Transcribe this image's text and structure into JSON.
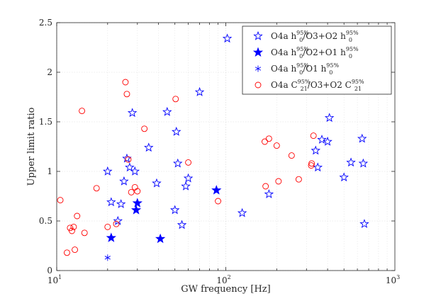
{
  "chart_data": {
    "type": "scatter",
    "xlabel": "GW frequency [Hz]",
    "ylabel": "Upper limit ratio",
    "xscale": "log",
    "xlim": [
      10,
      1000
    ],
    "ylim": [
      0,
      2.5
    ],
    "xticks": [
      10,
      100,
      1000
    ],
    "xtick_labels": [
      "10",
      "10",
      "10"
    ],
    "xtick_exponents": [
      "1",
      "2",
      "3"
    ],
    "yticks": [
      0,
      0.5,
      1,
      1.5,
      2,
      2.5
    ],
    "ytick_labels": [
      "0",
      "0.5",
      "1",
      "1.5",
      "2",
      "2.5"
    ],
    "grid": true,
    "legend_position": "top-right",
    "series": [
      {
        "name": "O4a h0 95% / O3+O2 h0 95%",
        "legend_label": {
          "base": "O4a h",
          "sub": "0",
          "sup": "95%",
          "mid": "/O3+O2 h",
          "sub2": "0",
          "sup2": "95%"
        },
        "marker": "star-open",
        "color": "#0000ff",
        "x": [
          20,
          21,
          23,
          24,
          25,
          26,
          27,
          28,
          29,
          35,
          39,
          45,
          50,
          51,
          52,
          55,
          58,
          60,
          70,
          102,
          125,
          180,
          340,
          350,
          370,
          400,
          410,
          500,
          550,
          640,
          650,
          660
        ],
        "y": [
          1.0,
          0.69,
          0.5,
          0.67,
          0.9,
          1.13,
          1.04,
          1.59,
          1.0,
          1.24,
          0.88,
          1.6,
          0.61,
          1.4,
          1.08,
          0.46,
          0.85,
          0.93,
          1.8,
          2.34,
          0.58,
          0.77,
          1.21,
          1.04,
          1.32,
          1.3,
          1.54,
          0.94,
          1.09,
          1.33,
          1.08,
          0.47
        ]
      },
      {
        "name": "O4a h0 95% / O2+O1 h0 95%",
        "legend_label": {
          "base": "O4a h",
          "sub": "0",
          "sup": "95%",
          "mid": "/O2+O1 h",
          "sub2": "0",
          "sup2": "95%"
        },
        "marker": "star-filled",
        "color": "#0000ff",
        "x": [
          21,
          29.5,
          30,
          41,
          88
        ],
        "y": [
          0.33,
          0.61,
          0.68,
          0.32,
          0.81
        ]
      },
      {
        "name": "O4a h0 95% / O1 h0 95%",
        "legend_label": {
          "base": "O4a h",
          "sub": "0",
          "sup": "95%",
          "mid": "/O1 h",
          "sub2": "0",
          "sup2": "95%"
        },
        "marker": "asterisk",
        "color": "#0000ff",
        "x": [
          20
        ],
        "y": [
          0.13
        ]
      },
      {
        "name": "O4a C21 95% / O3+O2 C21 95%",
        "legend_label": {
          "base": "O4a C",
          "sub": "21",
          "sup": "95%",
          "mid": "/O3+O2 C",
          "sub2": "21",
          "sup2": "95%"
        },
        "marker": "circle-open",
        "color": "#ff0000",
        "x": [
          10.5,
          11.5,
          12,
          12.3,
          12.6,
          12.8,
          13.2,
          14.1,
          14.6,
          17.2,
          20,
          22.5,
          25.5,
          26,
          26.5,
          27.6,
          29,
          30,
          33,
          50.5,
          60,
          90,
          170,
          172,
          180,
          200,
          205,
          245,
          270,
          320,
          322,
          330
        ],
        "y": [
          0.71,
          0.18,
          0.43,
          0.4,
          0.44,
          0.21,
          0.55,
          1.61,
          0.38,
          0.83,
          0.44,
          0.47,
          1.9,
          1.78,
          1.12,
          0.79,
          0.84,
          0.8,
          1.43,
          1.73,
          1.09,
          0.7,
          1.3,
          0.85,
          1.33,
          1.26,
          0.9,
          1.16,
          0.92,
          1.06,
          1.08,
          1.36
        ]
      }
    ]
  }
}
